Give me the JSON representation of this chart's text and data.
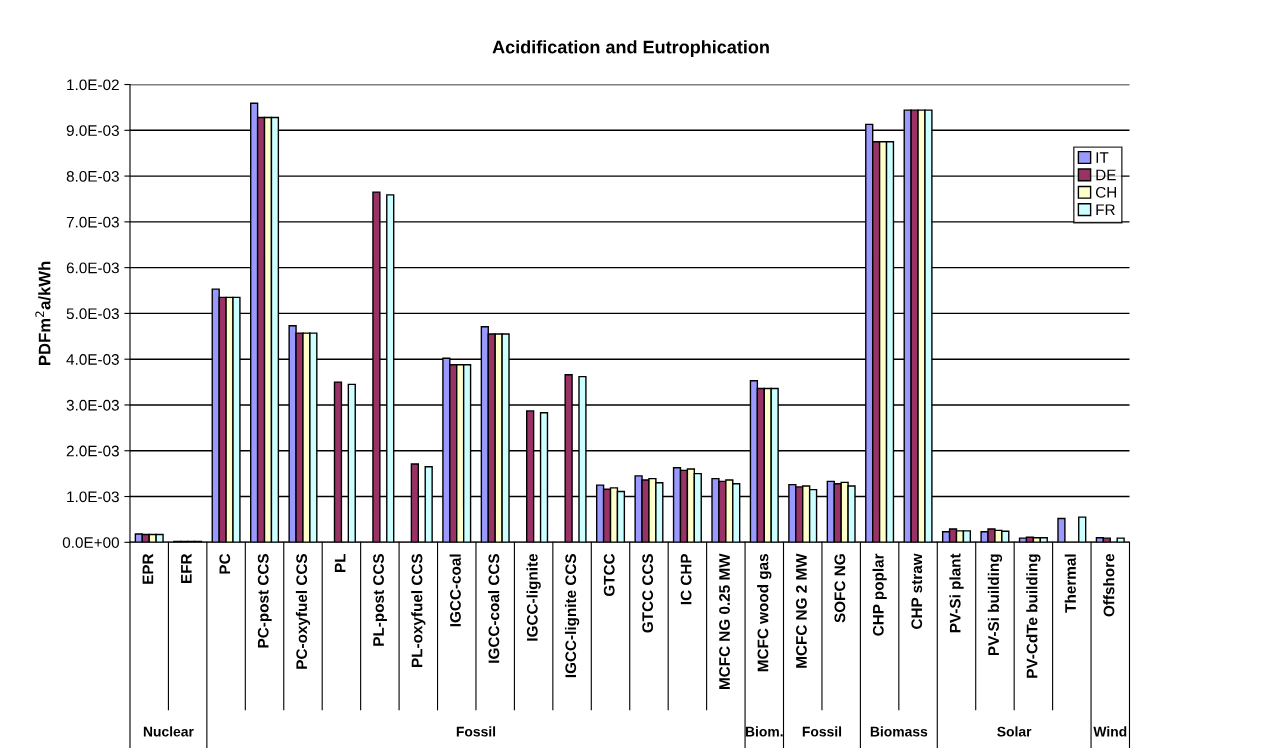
{
  "chart_data": {
    "type": "bar",
    "title": "Acidification and Eutrophication",
    "ylabel": "PDFm$^{2}$a/kWh",
    "categories": [
      "EPR",
      "EFR",
      "PC",
      "PC-post CCS",
      "PC-oxyfuel CCS",
      "PL",
      "PL-post CCS",
      "PL-oxyfuel CCS",
      "IGCC-coal",
      "IGCC-coal CCS",
      "IGCC-lignite",
      "IGCC-lignite CCS",
      "GTCC",
      "GTCC CCS",
      "IC CHP",
      "MCFC NG 0.25 MW",
      "MCFC wood gas",
      "MCFC NG 2 MW",
      "SOFC NG",
      "CHP poplar",
      "CHP straw",
      "PV-Si plant",
      "PV-Si building",
      "PV-CdTe building",
      "Thermal",
      "Offshore"
    ],
    "series": [
      {
        "name": "IT",
        "color": "#9999ff",
        "values": [
          0.00018,
          2e-05,
          0.00553,
          0.00959,
          0.00473,
          null,
          null,
          null,
          0.00402,
          0.00471,
          null,
          null,
          0.00125,
          0.00145,
          0.00163,
          0.00139,
          0.00353,
          0.00126,
          0.00133,
          0.00913,
          0.00944,
          0.00023,
          0.00023,
          9e-05,
          0.00052,
          0.0001
        ]
      },
      {
        "name": "DE",
        "color": "#993366",
        "values": [
          0.00017,
          2e-05,
          0.00535,
          0.00928,
          0.00457,
          0.0035,
          0.00765,
          0.00171,
          0.00388,
          0.00455,
          0.00287,
          0.00366,
          0.00116,
          0.00136,
          0.00157,
          0.00133,
          0.00336,
          0.00121,
          0.00128,
          0.00875,
          0.00944,
          0.00029,
          0.00029,
          0.00011,
          null,
          9e-05
        ]
      },
      {
        "name": "CH",
        "color": "#ffffcc",
        "values": [
          0.00017,
          2e-05,
          0.00535,
          0.00928,
          0.00457,
          null,
          null,
          null,
          0.00388,
          0.00455,
          null,
          null,
          0.00119,
          0.00139,
          0.0016,
          0.00136,
          0.00336,
          0.00123,
          0.00131,
          0.00875,
          0.00944,
          0.00025,
          0.00026,
          0.0001,
          null,
          null
        ]
      },
      {
        "name": "FR",
        "color": "#ccffff",
        "values": [
          0.00017,
          2e-05,
          0.00535,
          0.00928,
          0.00457,
          0.00345,
          0.00759,
          0.00165,
          0.00388,
          0.00455,
          0.00283,
          0.00362,
          0.00111,
          0.0013,
          0.0015,
          0.00128,
          0.00336,
          0.00115,
          0.00123,
          0.00875,
          0.00944,
          0.00025,
          0.00024,
          0.0001,
          0.00055,
          9e-05
        ]
      }
    ],
    "ylim": [
      0,
      0.01
    ],
    "yticks": [
      {
        "value": 0,
        "label": "0.0E+00"
      },
      {
        "value": 0.001,
        "label": "1.0E-03"
      },
      {
        "value": 0.002,
        "label": "2.0E-03"
      },
      {
        "value": 0.003,
        "label": "3.0E-03"
      },
      {
        "value": 0.004,
        "label": "4.0E-03"
      },
      {
        "value": 0.005,
        "label": "5.0E-03"
      },
      {
        "value": 0.006,
        "label": "6.0E-03"
      },
      {
        "value": 0.007,
        "label": "7.0E-03"
      },
      {
        "value": 0.008,
        "label": "8.0E-03"
      },
      {
        "value": 0.009,
        "label": "9.0E-03"
      },
      {
        "value": 0.01,
        "label": "1.0E-02"
      }
    ],
    "annotations": [
      "Nuclear",
      "Fossil",
      "Biom.",
      "Fossil",
      "Biomass",
      "Solar",
      "Wind"
    ],
    "grid": "y",
    "legend": "top right"
  }
}
